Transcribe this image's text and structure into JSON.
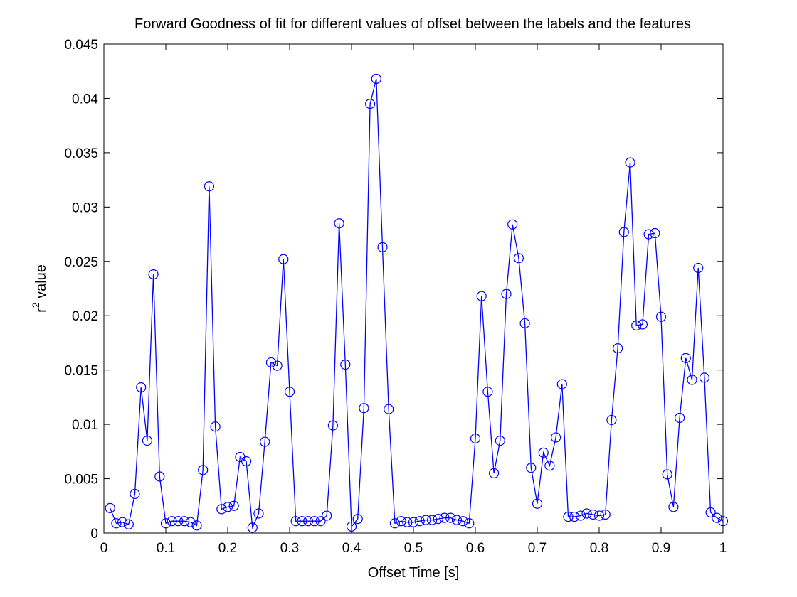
{
  "chart_data": {
    "type": "line",
    "title": "Forward Goodness of fit for different values of offset between the labels and the features",
    "xlabel": "Offset Time [s]",
    "ylabel_base": "r",
    "ylabel_sup": "2",
    "ylabel_rest": " value",
    "xlim": [
      0,
      1
    ],
    "ylim": [
      0,
      0.045
    ],
    "xticks": [
      0,
      0.1,
      0.2,
      0.3,
      0.4,
      0.5,
      0.6,
      0.7,
      0.8,
      0.9,
      1
    ],
    "xtick_labels": [
      "0",
      "0.1",
      "0.2",
      "0.3",
      "0.4",
      "0.5",
      "0.6",
      "0.7",
      "0.8",
      "0.9",
      "1"
    ],
    "yticks": [
      0,
      0.005,
      0.01,
      0.015,
      0.02,
      0.025,
      0.03,
      0.035,
      0.04,
      0.045
    ],
    "ytick_labels": [
      "0",
      "0.005",
      "0.01",
      "0.015",
      "0.02",
      "0.025",
      "0.03",
      "0.035",
      "0.04",
      "0.045"
    ],
    "grid": false,
    "marker": "circle",
    "color": "#0000ff",
    "x": [
      0.01,
      0.02,
      0.03,
      0.04,
      0.05,
      0.06,
      0.07,
      0.08,
      0.09,
      0.1,
      0.11,
      0.12,
      0.13,
      0.14,
      0.15,
      0.16,
      0.17,
      0.18,
      0.19,
      0.2,
      0.21,
      0.22,
      0.23,
      0.24,
      0.25,
      0.26,
      0.27,
      0.28,
      0.29,
      0.3,
      0.31,
      0.32,
      0.33,
      0.34,
      0.35,
      0.36,
      0.37,
      0.38,
      0.39,
      0.4,
      0.41,
      0.42,
      0.43,
      0.44,
      0.45,
      0.46,
      0.47,
      0.48,
      0.49,
      0.5,
      0.51,
      0.52,
      0.53,
      0.54,
      0.55,
      0.56,
      0.57,
      0.58,
      0.59,
      0.6,
      0.61,
      0.62,
      0.63,
      0.64,
      0.65,
      0.66,
      0.67,
      0.68,
      0.69,
      0.7,
      0.71,
      0.72,
      0.73,
      0.74,
      0.75,
      0.76,
      0.77,
      0.78,
      0.79,
      0.8,
      0.81,
      0.82,
      0.83,
      0.84,
      0.85,
      0.86,
      0.87,
      0.88,
      0.89,
      0.9,
      0.91,
      0.92,
      0.93,
      0.94,
      0.95,
      0.96,
      0.97,
      0.98,
      0.99,
      1.0
    ],
    "y": [
      0.0023,
      0.0009,
      0.001,
      0.0008,
      0.0036,
      0.0134,
      0.0085,
      0.0238,
      0.0052,
      0.0009,
      0.0011,
      0.0011,
      0.0011,
      0.001,
      0.0007,
      0.0058,
      0.0319,
      0.0098,
      0.0022,
      0.0024,
      0.0025,
      0.007,
      0.0066,
      0.0005,
      0.0018,
      0.0084,
      0.0157,
      0.0154,
      0.0252,
      0.013,
      0.0011,
      0.0011,
      0.0011,
      0.0011,
      0.0011,
      0.0016,
      0.0099,
      0.0285,
      0.0155,
      0.0006,
      0.0013,
      0.0115,
      0.0395,
      0.0418,
      0.0263,
      0.0114,
      0.0009,
      0.0011,
      0.001,
      0.001,
      0.0011,
      0.0012,
      0.0012,
      0.0013,
      0.0014,
      0.0014,
      0.0012,
      0.0011,
      0.0009,
      0.0087,
      0.0218,
      0.013,
      0.0055,
      0.0085,
      0.022,
      0.0284,
      0.0253,
      0.0193,
      0.006,
      0.0027,
      0.0074,
      0.0062,
      0.0088,
      0.0137,
      0.0015,
      0.0015,
      0.0016,
      0.0018,
      0.0017,
      0.0016,
      0.0017,
      0.0104,
      0.017,
      0.0277,
      0.0341,
      0.0191,
      0.0192,
      0.0275,
      0.0276,
      0.0199,
      0.0054,
      0.0024,
      0.0106,
      0.0161,
      0.0141,
      0.0244,
      0.0143,
      0.0019,
      0.0014,
      0.0011
    ]
  }
}
